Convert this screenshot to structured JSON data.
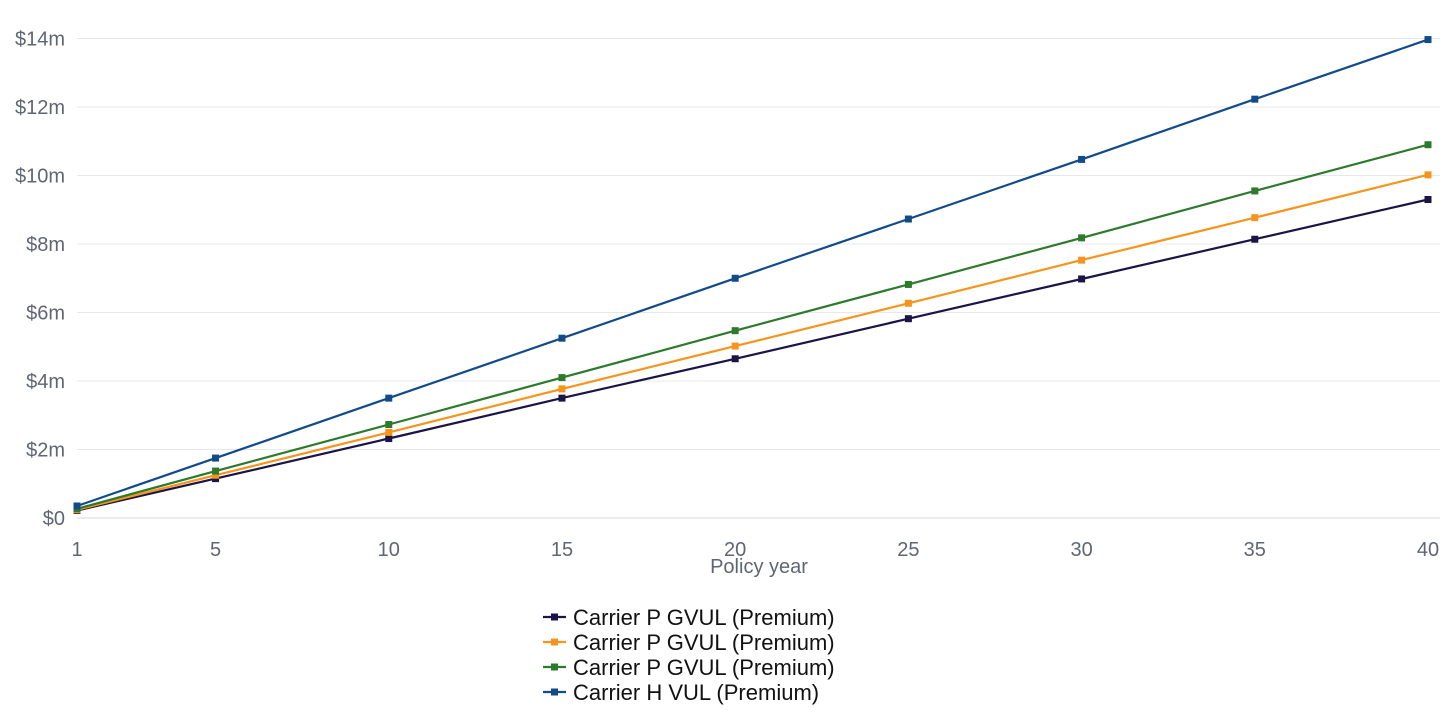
{
  "chart_data": {
    "type": "line",
    "title": "",
    "xlabel": "Policy year",
    "ylabel": "",
    "x": [
      1,
      5,
      10,
      15,
      20,
      25,
      30,
      35,
      40
    ],
    "x_tick_labels": [
      "1",
      "5",
      "10",
      "15",
      "20",
      "25",
      "30",
      "35",
      "40"
    ],
    "y_tick_values": [
      0,
      2,
      4,
      6,
      8,
      10,
      12,
      14
    ],
    "y_tick_labels": [
      "$0",
      "$2m",
      "$4m",
      "$6m",
      "$8m",
      "$10m",
      "$12m",
      "$14m"
    ],
    "ylim": [
      0,
      14.6
    ],
    "y_unit": "$m",
    "grid": "horizontal",
    "legend_position": "bottom",
    "series": [
      {
        "name": "Carrier P GVUL (Premium)",
        "color": "#1b1446",
        "values": [
          0.22,
          1.15,
          2.32,
          3.5,
          4.65,
          5.82,
          6.98,
          8.14,
          9.3
        ]
      },
      {
        "name": "Carrier P GVUL (Premium)",
        "color": "#f7941d",
        "values": [
          0.24,
          1.25,
          2.5,
          3.77,
          5.02,
          6.27,
          7.53,
          8.77,
          10.02
        ]
      },
      {
        "name": "Carrier P GVUL (Premium)",
        "color": "#2d7a2d",
        "values": [
          0.27,
          1.37,
          2.73,
          4.1,
          5.47,
          6.82,
          8.18,
          9.55,
          10.9
        ]
      },
      {
        "name": "Carrier H VUL (Premium)",
        "color": "#114b8a",
        "values": [
          0.35,
          1.75,
          3.5,
          5.25,
          7.0,
          8.73,
          10.47,
          12.23,
          13.97
        ]
      }
    ]
  }
}
